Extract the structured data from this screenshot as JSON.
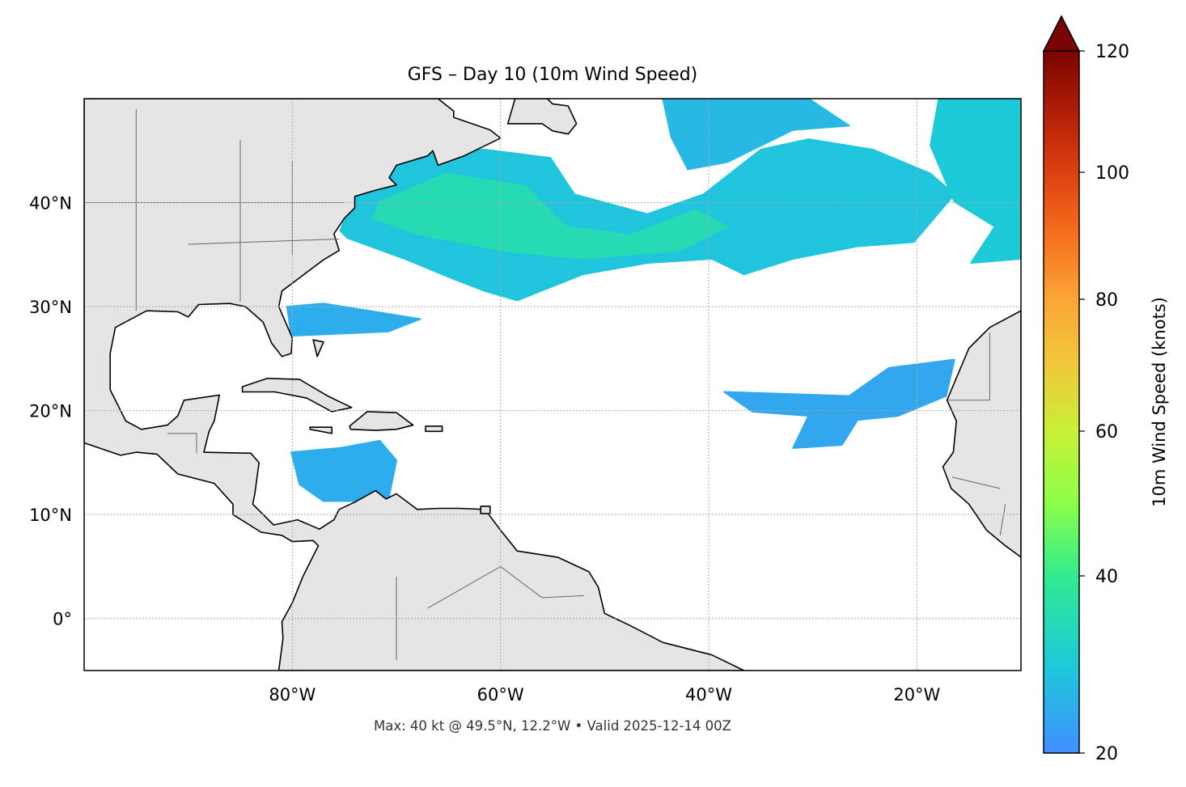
{
  "chart_data": {
    "type": "heatmap",
    "title": "GFS – Day 10 (10m Wind Speed)",
    "footer": "Max: 40 kt @ 49.5°N, 12.2°W • Valid 2025-12-14 00Z",
    "projection": "plate-carree",
    "extent": {
      "lon": [
        -100,
        -10
      ],
      "lat": [
        -5,
        50
      ]
    },
    "grid": true,
    "x_ticks": [
      {
        "value": -80,
        "label": "80°W"
      },
      {
        "value": -60,
        "label": "60°W"
      },
      {
        "value": -40,
        "label": "40°W"
      },
      {
        "value": -20,
        "label": "20°W"
      }
    ],
    "y_ticks": [
      {
        "value": 40,
        "label": "40°N"
      },
      {
        "value": 30,
        "label": "30°N"
      },
      {
        "value": 20,
        "label": "20°N"
      },
      {
        "value": 10,
        "label": "10°N"
      },
      {
        "value": 0,
        "label": "0°"
      }
    ],
    "colorbar": {
      "label": "10m Wind Speed (knots)",
      "range": [
        20,
        120
      ],
      "extend": "max",
      "ticks": [
        {
          "value": 20,
          "label": "20"
        },
        {
          "value": 40,
          "label": "40"
        },
        {
          "value": 60,
          "label": "60"
        },
        {
          "value": 80,
          "label": "80"
        },
        {
          "value": 100,
          "label": "100"
        },
        {
          "value": 120,
          "label": "120"
        }
      ],
      "colors": [
        {
          "value": 20,
          "color": "#4090ff"
        },
        {
          "value": 30,
          "color": "#1ccad8"
        },
        {
          "value": 40,
          "color": "#30eb90"
        },
        {
          "value": 50,
          "color": "#8cff48"
        },
        {
          "value": 60,
          "color": "#c8f035"
        },
        {
          "value": 70,
          "color": "#f0c83a"
        },
        {
          "value": 80,
          "color": "#fba535"
        },
        {
          "value": 90,
          "color": "#f5701e"
        },
        {
          "value": 100,
          "color": "#dc4010"
        },
        {
          "value": 110,
          "color": "#b01e06"
        },
        {
          "value": 120,
          "color": "#7a0403"
        }
      ]
    },
    "wind_regions": [
      {
        "speed": 29,
        "lonlat": [
          [
            -75.4,
            37.3
          ],
          [
            -73.9,
            41.2
          ],
          [
            -70.8,
            43.6
          ],
          [
            -66.1,
            45.1
          ],
          [
            -61.5,
            45.1
          ],
          [
            -55.2,
            44.3
          ],
          [
            -52.9,
            40.8
          ],
          [
            -45.9,
            38.9
          ],
          [
            -40.5,
            40.8
          ],
          [
            -35,
            45.1
          ],
          [
            -30.4,
            46.1
          ],
          [
            -24.2,
            45.1
          ],
          [
            -18.7,
            42.8
          ],
          [
            -16.4,
            40.8
          ],
          [
            -20.3,
            36.2
          ],
          [
            -25.7,
            35.8
          ],
          [
            -31.9,
            34.6
          ],
          [
            -36.6,
            33.1
          ],
          [
            -39.7,
            34.6
          ],
          [
            -45.9,
            34.2
          ],
          [
            -52.1,
            33.1
          ],
          [
            -58.4,
            30.6
          ],
          [
            -61.5,
            31.5
          ],
          [
            -64.6,
            32.7
          ],
          [
            -69.2,
            34.6
          ],
          [
            -74.7,
            36.6
          ]
        ]
      },
      {
        "speed": 35,
        "lonlat": [
          [
            -71.6,
            40.1
          ],
          [
            -65.3,
            42.8
          ],
          [
            -57.6,
            41.6
          ],
          [
            -53.7,
            37.7
          ],
          [
            -47.5,
            36.9
          ],
          [
            -41.3,
            39.3
          ],
          [
            -38.2,
            37.7
          ],
          [
            -42.8,
            35.4
          ],
          [
            -52.1,
            34.6
          ],
          [
            -59.9,
            35.4
          ],
          [
            -67.7,
            36.9
          ],
          [
            -72.3,
            38.5
          ]
        ]
      },
      {
        "speed": 27,
        "lonlat": [
          [
            -44.4,
            50
          ],
          [
            -30.4,
            50
          ],
          [
            -26.5,
            47.4
          ],
          [
            -31.9,
            47.0
          ],
          [
            -38.2,
            43.9
          ],
          [
            -42,
            43.2
          ],
          [
            -43.6,
            46.3
          ]
        ]
      },
      {
        "speed": 30,
        "lonlat": [
          [
            -17.9,
            50
          ],
          [
            -10,
            50
          ],
          [
            -10,
            34.6
          ],
          [
            -14.8,
            34.2
          ],
          [
            -12.5,
            37.7
          ],
          [
            -16.4,
            40.1
          ],
          [
            -18.7,
            45.5
          ]
        ]
      },
      {
        "speed": 25,
        "lonlat": [
          [
            -80.5,
            30
          ],
          [
            -77,
            30.3
          ],
          [
            -67.7,
            28.8
          ],
          [
            -70.8,
            27.6
          ],
          [
            -80.1,
            27.2
          ]
        ]
      },
      {
        "speed": 25,
        "lonlat": [
          [
            -80.1,
            16
          ],
          [
            -75.4,
            16.4
          ],
          [
            -71.6,
            17.1
          ],
          [
            -70,
            15.2
          ],
          [
            -70.8,
            11.3
          ],
          [
            -77,
            11.3
          ],
          [
            -79.3,
            12.9
          ]
        ]
      },
      {
        "speed": 24,
        "lonlat": [
          [
            -38.5,
            21.8
          ],
          [
            -26.5,
            21.4
          ],
          [
            -22.7,
            24.1
          ],
          [
            -16.4,
            24.9
          ],
          [
            -17.2,
            21.4
          ],
          [
            -21.8,
            19.5
          ],
          [
            -25.7,
            19.1
          ],
          [
            -27.2,
            16.7
          ],
          [
            -31.9,
            16.4
          ],
          [
            -30.4,
            19.5
          ],
          [
            -35.8,
            19.9
          ]
        ]
      }
    ],
    "land_color": "#e5e5e5"
  }
}
